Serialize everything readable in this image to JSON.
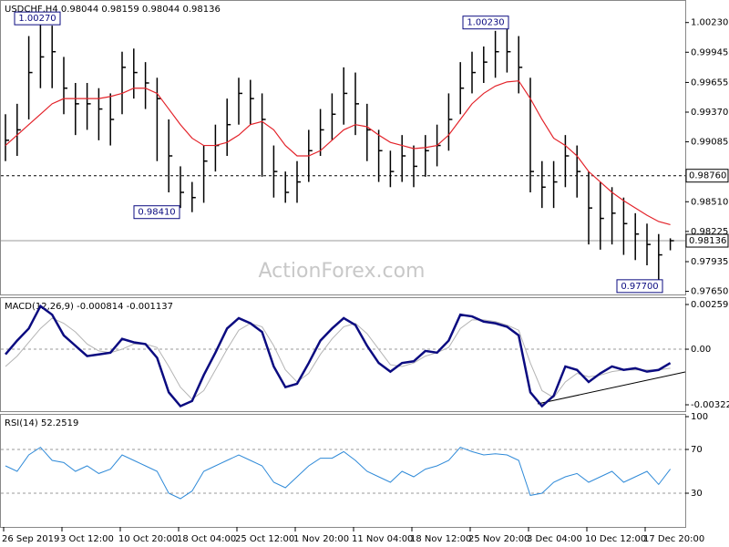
{
  "watermark": "ActionForex.com",
  "chart_data": [
    {
      "type": "ohlc",
      "title": "USDCHF,H4  0.98044 0.98159 0.98044 0.98136",
      "color": "#000000",
      "ma_color": "#e3232a",
      "ylim": [
        0.9762,
        1.0042
      ],
      "yticks": [
        {
          "value": 1.0023,
          "label": "1.00230"
        },
        0.99945,
        0.99655,
        {
          "value": 0.9937,
          "label": "0.99370"
        },
        0.99085,
        {
          "value": 0.9851,
          "label": "0.98510"
        },
        0.98225,
        0.97935,
        {
          "value": 0.9765,
          "label": "0.97650"
        }
      ],
      "levels": [
        {
          "value": 0.9876,
          "label": "0.98760",
          "style": "dotted"
        },
        {
          "value": 0.98136,
          "label": "0.98136",
          "style": "solid"
        }
      ],
      "annotations": [
        {
          "value": 1.0027,
          "label": "1.00270"
        },
        {
          "value": 0.9841,
          "label": "0.98410"
        },
        {
          "value": 1.0023,
          "label": "1.00230"
        },
        {
          "value": 0.977,
          "label": "0.97700"
        }
      ],
      "high": [
        0.9935,
        0.9945,
        1.001,
        1.0027,
        1.002,
        0.999,
        0.9965,
        0.9965,
        0.996,
        0.9955,
        0.9995,
        0.9998,
        0.9985,
        0.997,
        0.993,
        0.9885,
        0.987,
        0.9905,
        0.9925,
        0.995,
        0.997,
        0.9968,
        0.9955,
        0.9905,
        0.988,
        0.989,
        0.992,
        0.994,
        0.9955,
        0.998,
        0.9975,
        0.9945,
        0.992,
        0.99,
        0.9915,
        0.9905,
        0.9915,
        0.9925,
        0.9955,
        0.9985,
        0.9995,
        1.0,
        1.0015,
        1.0023,
        1.001,
        0.997,
        0.989,
        0.989,
        0.9915,
        0.9905,
        0.988,
        0.987,
        0.9865,
        0.9855,
        0.984,
        0.983,
        0.982,
        0.98159
      ],
      "low": [
        0.989,
        0.9895,
        0.993,
        0.996,
        0.996,
        0.9935,
        0.9915,
        0.992,
        0.991,
        0.9905,
        0.9935,
        0.995,
        0.994,
        0.989,
        0.986,
        0.9845,
        0.9841,
        0.985,
        0.988,
        0.9895,
        0.9925,
        0.9925,
        0.9875,
        0.9855,
        0.985,
        0.985,
        0.987,
        0.9895,
        0.991,
        0.9925,
        0.9915,
        0.989,
        0.987,
        0.9865,
        0.987,
        0.9865,
        0.9875,
        0.9885,
        0.99,
        0.9935,
        0.9955,
        0.9965,
        0.997,
        0.9975,
        0.9955,
        0.986,
        0.9845,
        0.9845,
        0.9865,
        0.9855,
        0.981,
        0.9805,
        0.981,
        0.98,
        0.9795,
        0.979,
        0.977,
        0.98044
      ],
      "close": [
        0.991,
        0.992,
        0.9975,
        0.999,
        0.9995,
        0.996,
        0.9945,
        0.9945,
        0.994,
        0.993,
        0.998,
        0.9975,
        0.9965,
        0.995,
        0.9895,
        0.986,
        0.9855,
        0.989,
        0.9905,
        0.9925,
        0.9955,
        0.995,
        0.993,
        0.988,
        0.986,
        0.987,
        0.99,
        0.992,
        0.9935,
        0.9955,
        0.9945,
        0.992,
        0.99,
        0.988,
        0.9895,
        0.9885,
        0.99,
        0.9905,
        0.993,
        0.996,
        0.9975,
        0.9985,
        0.9995,
        0.9995,
        0.998,
        0.988,
        0.9865,
        0.987,
        0.9895,
        0.988,
        0.9845,
        0.9835,
        0.984,
        0.983,
        0.982,
        0.981,
        0.98,
        0.98136
      ],
      "ma": [
        0.9905,
        0.9915,
        0.9925,
        0.9935,
        0.9945,
        0.995,
        0.995,
        0.995,
        0.995,
        0.9952,
        0.9955,
        0.996,
        0.996,
        0.9955,
        0.994,
        0.9925,
        0.9912,
        0.9905,
        0.9905,
        0.9908,
        0.9915,
        0.9925,
        0.9928,
        0.992,
        0.9905,
        0.9895,
        0.9895,
        0.99,
        0.991,
        0.992,
        0.9925,
        0.9923,
        0.9915,
        0.9908,
        0.9905,
        0.9902,
        0.9903,
        0.9905,
        0.9915,
        0.993,
        0.9945,
        0.9955,
        0.9962,
        0.9966,
        0.9967,
        0.995,
        0.993,
        0.9912,
        0.9905,
        0.9895,
        0.988,
        0.987,
        0.986,
        0.9852,
        0.9845,
        0.9838,
        0.9832,
        0.9829
      ]
    },
    {
      "type": "macd",
      "title": "MACD(12,26,9) -0.000814 -0.001137",
      "color": "#0b0b80",
      "signal_color": "#b4b4b4",
      "ylim": [
        -0.00359,
        0.00296
      ],
      "yticks": [
        0.00259,
        {
          "value": 0,
          "label": "0.00"
        },
        -0.003221
      ],
      "levels": [
        0
      ],
      "main": [
        -0.0003,
        0.0005,
        0.0012,
        0.0025,
        0.002,
        0.0008,
        0.0002,
        -0.0004,
        -0.0003,
        -0.0002,
        0.0006,
        0.0004,
        0.0003,
        -0.0005,
        -0.0025,
        -0.0033,
        -0.003,
        -0.0015,
        -0.0002,
        0.0012,
        0.0018,
        0.0015,
        0.001,
        -0.001,
        -0.0022,
        -0.002,
        -0.0008,
        0.0005,
        0.0012,
        0.0018,
        0.0014,
        0.0002,
        -0.0008,
        -0.0013,
        -0.0008,
        -0.0007,
        -0.0001,
        -0.0002,
        0.0005,
        0.002,
        0.0019,
        0.0016,
        0.0015,
        0.0013,
        0.0008,
        -0.0025,
        -0.0033,
        -0.0027,
        -0.001,
        -0.0012,
        -0.0019,
        -0.0014,
        -0.001,
        -0.0012,
        -0.0011,
        -0.0013,
        -0.0012,
        -0.0008
      ],
      "signal": [
        -0.001,
        -0.0004,
        0.0004,
        0.0012,
        0.0018,
        0.0015,
        0.001,
        0.0003,
        -0.0001,
        -0.0002,
        0.0,
        0.0003,
        0.0003,
        0.0001,
        -0.001,
        -0.0022,
        -0.0029,
        -0.0024,
        -0.0012,
        0.0,
        0.0011,
        0.0015,
        0.0013,
        0.0002,
        -0.0012,
        -0.0019,
        -0.0014,
        -0.0003,
        0.0006,
        0.0013,
        0.0015,
        0.0009,
        0.0,
        -0.0009,
        -0.001,
        -0.0008,
        -0.0004,
        -0.0002,
        0.0001,
        0.0012,
        0.0017,
        0.0017,
        0.0016,
        0.0014,
        0.0011,
        -0.0008,
        -0.0024,
        -0.0028,
        -0.0019,
        -0.0014,
        -0.0016,
        -0.0015,
        -0.0013,
        -0.0012,
        -0.0012,
        -0.0012,
        -0.0012,
        -0.0011
      ]
    },
    {
      "type": "rsi",
      "title": "RSI(14) 52.2519",
      "color": "#2f8ad8",
      "ylim": [
        0,
        100
      ],
      "yticks": [
        100,
        70,
        30
      ],
      "levels": [
        30,
        70
      ],
      "categories": [
        "26 Sep 2019",
        null,
        null,
        null,
        null,
        "3 Oct 12:00",
        null,
        null,
        null,
        null,
        "10 Oct 20:00",
        null,
        null,
        null,
        null,
        "18 Oct 04:00",
        null,
        null,
        null,
        null,
        "25 Oct 12:00",
        null,
        null,
        null,
        null,
        "1 Nov 20:00",
        null,
        null,
        null,
        null,
        "11 Nov 04:00",
        null,
        null,
        null,
        null,
        "18 Nov 12:00",
        null,
        null,
        null,
        null,
        "25 Nov 20:00",
        null,
        null,
        null,
        null,
        "3 Dec 04:00",
        null,
        null,
        null,
        null,
        "10 Dec 12:00",
        null,
        null,
        null,
        null,
        "17 Dec 20:00",
        null,
        null
      ],
      "values": [
        55,
        50,
        65,
        72,
        60,
        58,
        50,
        55,
        48,
        52,
        65,
        60,
        55,
        50,
        30,
        25,
        32,
        50,
        55,
        60,
        65,
        60,
        55,
        40,
        35,
        45,
        55,
        62,
        62,
        68,
        60,
        50,
        45,
        40,
        50,
        45,
        52,
        55,
        60,
        72,
        68,
        65,
        66,
        65,
        60,
        28,
        30,
        40,
        45,
        48,
        40,
        45,
        50,
        40,
        45,
        50,
        38,
        52
      ]
    }
  ]
}
